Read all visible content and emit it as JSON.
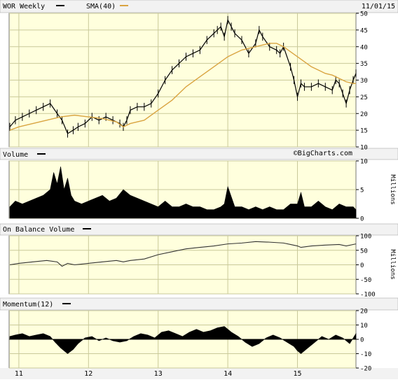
{
  "header": {
    "ticker_label": "WOR Weekly",
    "sma_label": "SMA(40)",
    "date": "11/01/15"
  },
  "watermark": "©BigCharts.com",
  "panels": {
    "volume": {
      "label": "Volume",
      "unit": "Millions"
    },
    "obv": {
      "label": "On Balance Volume",
      "unit": "Millions"
    },
    "momentum": {
      "label": "Momentum(12)"
    }
  },
  "x_axis": {
    "tick_labels": [
      "11",
      "12",
      "13",
      "14",
      "15"
    ],
    "tick_positions": [
      2011.0,
      2012.0,
      2013.0,
      2014.0,
      2015.0
    ]
  },
  "colors": {
    "price": "#000000",
    "sma": "#d9a441",
    "panel_bg": "#ffffdd",
    "grid": "#c9c99a",
    "header_bg": "#f2f2f2",
    "area": "#000000",
    "obv_line": "#333333"
  },
  "chart_data": [
    {
      "type": "line",
      "name": "price",
      "x_range": [
        2010.86,
        2015.84
      ],
      "ylim": [
        10,
        50
      ],
      "y_ticks": [
        10,
        15,
        20,
        25,
        30,
        35,
        40,
        45,
        50
      ],
      "grid": true,
      "series": [
        {
          "name": "WOR Weekly",
          "x": [
            2010.87,
            2010.95,
            2011.05,
            2011.15,
            2011.25,
            2011.35,
            2011.45,
            2011.55,
            2011.62,
            2011.7,
            2011.78,
            2011.85,
            2011.95,
            2012.05,
            2012.15,
            2012.25,
            2012.35,
            2012.45,
            2012.5,
            2012.55,
            2012.6,
            2012.7,
            2012.8,
            2012.9,
            2013.0,
            2013.1,
            2013.2,
            2013.3,
            2013.4,
            2013.5,
            2013.6,
            2013.7,
            2013.8,
            2013.85,
            2013.9,
            2013.95,
            2014.0,
            2014.05,
            2014.1,
            2014.2,
            2014.3,
            2014.4,
            2014.45,
            2014.5,
            2014.6,
            2014.7,
            2014.75,
            2014.8,
            2014.9,
            2014.95,
            2015.0,
            2015.05,
            2015.1,
            2015.2,
            2015.3,
            2015.4,
            2015.5,
            2015.55,
            2015.6,
            2015.65,
            2015.7,
            2015.75,
            2015.8,
            2015.84
          ],
          "values": [
            16,
            18,
            19,
            20,
            21,
            22,
            23,
            20,
            18,
            14,
            15,
            16,
            17,
            19,
            18,
            19,
            18,
            17,
            16,
            18,
            21,
            22,
            22,
            23,
            26,
            30,
            33,
            35,
            37,
            38,
            39,
            42,
            44,
            45,
            46,
            43,
            48,
            46,
            44,
            42,
            38,
            41,
            45,
            43,
            40,
            39,
            38,
            40,
            34,
            30,
            25,
            29,
            28,
            28,
            29,
            28,
            27,
            30,
            29,
            26,
            23,
            27,
            30,
            32
          ]
        },
        {
          "name": "SMA(40)",
          "x": [
            2010.87,
            2011.0,
            2011.2,
            2011.4,
            2011.6,
            2011.8,
            2012.0,
            2012.2,
            2012.4,
            2012.5,
            2012.6,
            2012.8,
            2013.0,
            2013.2,
            2013.4,
            2013.6,
            2013.8,
            2014.0,
            2014.1,
            2014.2,
            2014.3,
            2014.4,
            2014.5,
            2014.6,
            2014.7,
            2014.8,
            2014.9,
            2015.0,
            2015.1,
            2015.2,
            2015.3,
            2015.4,
            2015.5,
            2015.6,
            2015.7,
            2015.8,
            2015.84
          ],
          "values": [
            15,
            16,
            17,
            18,
            19,
            19.5,
            19,
            18.5,
            17.5,
            16,
            17,
            18,
            21,
            24,
            28,
            31,
            34,
            37,
            38,
            39,
            39.5,
            40,
            40.5,
            41,
            41,
            40,
            38.5,
            37,
            35.5,
            34,
            33,
            32,
            31.5,
            30.5,
            29.5,
            29,
            29
          ]
        }
      ]
    },
    {
      "type": "area",
      "name": "volume",
      "x_range": [
        2010.86,
        2015.84
      ],
      "ylim": [
        0,
        10
      ],
      "y_ticks": [
        0,
        5,
        10
      ],
      "ylabel": "Millions",
      "x": [
        2010.87,
        2010.95,
        2011.05,
        2011.15,
        2011.25,
        2011.35,
        2011.45,
        2011.5,
        2011.55,
        2011.6,
        2011.65,
        2011.7,
        2011.75,
        2011.8,
        2011.9,
        2012.0,
        2012.1,
        2012.2,
        2012.3,
        2012.4,
        2012.5,
        2012.6,
        2012.7,
        2012.8,
        2012.9,
        2013.0,
        2013.1,
        2013.2,
        2013.3,
        2013.4,
        2013.5,
        2013.6,
        2013.7,
        2013.8,
        2013.9,
        2013.95,
        2014.0,
        2014.1,
        2014.2,
        2014.3,
        2014.4,
        2014.5,
        2014.6,
        2014.7,
        2014.8,
        2014.9,
        2015.0,
        2015.05,
        2015.1,
        2015.2,
        2015.3,
        2015.4,
        2015.5,
        2015.6,
        2015.7,
        2015.8,
        2015.84
      ],
      "values": [
        2,
        3,
        2.5,
        3,
        3.5,
        4,
        5,
        8,
        6,
        9,
        5,
        7,
        4,
        3,
        2.5,
        3,
        3.5,
        4,
        3,
        3.5,
        5,
        4,
        3.5,
        3,
        2.5,
        2,
        3,
        2,
        2,
        2.5,
        2,
        2,
        1.5,
        1.5,
        2,
        2.5,
        5.5,
        2,
        2,
        1.5,
        2,
        1.5,
        2,
        1.5,
        1.5,
        2.5,
        2.5,
        4.5,
        2,
        2,
        3,
        2,
        1.5,
        2.5,
        2,
        2,
        1.5
      ]
    },
    {
      "type": "line",
      "name": "on_balance_volume",
      "x_range": [
        2010.86,
        2015.84
      ],
      "ylim": [
        -100,
        100
      ],
      "y_ticks": [
        -100,
        -50,
        0,
        50,
        100
      ],
      "ylabel": "Millions",
      "x": [
        2010.87,
        2011.0,
        2011.2,
        2011.4,
        2011.55,
        2011.62,
        2011.7,
        2011.8,
        2012.0,
        2012.2,
        2012.4,
        2012.5,
        2012.6,
        2012.8,
        2013.0,
        2013.2,
        2013.4,
        2013.6,
        2013.8,
        2014.0,
        2014.2,
        2014.4,
        2014.6,
        2014.8,
        2014.9,
        2015.0,
        2015.05,
        2015.2,
        2015.4,
        2015.6,
        2015.7,
        2015.84
      ],
      "values": [
        0,
        5,
        10,
        15,
        10,
        -5,
        5,
        0,
        5,
        10,
        15,
        10,
        15,
        20,
        35,
        45,
        55,
        60,
        65,
        72,
        75,
        80,
        78,
        75,
        70,
        65,
        60,
        65,
        68,
        70,
        65,
        72
      ]
    },
    {
      "type": "area",
      "name": "momentum",
      "x_range": [
        2010.86,
        2015.84
      ],
      "ylim": [
        -20,
        20
      ],
      "y_ticks": [
        -20,
        -10,
        0,
        10,
        20
      ],
      "x": [
        2010.87,
        2010.95,
        2011.05,
        2011.15,
        2011.25,
        2011.35,
        2011.45,
        2011.52,
        2011.6,
        2011.7,
        2011.78,
        2011.85,
        2011.95,
        2012.05,
        2012.15,
        2012.25,
        2012.35,
        2012.45,
        2012.55,
        2012.65,
        2012.75,
        2012.85,
        2012.95,
        2013.05,
        2013.15,
        2013.25,
        2013.35,
        2013.45,
        2013.55,
        2013.65,
        2013.75,
        2013.85,
        2013.95,
        2014.05,
        2014.15,
        2014.25,
        2014.35,
        2014.45,
        2014.55,
        2014.65,
        2014.75,
        2014.85,
        2014.95,
        2015.0,
        2015.05,
        2015.15,
        2015.25,
        2015.35,
        2015.45,
        2015.55,
        2015.65,
        2015.75,
        2015.84
      ],
      "values": [
        2,
        3,
        4,
        2,
        3,
        4,
        2,
        -2,
        -6,
        -10,
        -7,
        -3,
        1,
        2,
        -1,
        1,
        -1,
        -2,
        -1,
        2,
        4,
        3,
        1,
        5,
        6,
        4,
        2,
        5,
        7,
        5,
        6,
        8,
        9,
        5,
        2,
        -2,
        -5,
        -3,
        1,
        3,
        1,
        -2,
        -5,
        -8,
        -10,
        -6,
        -2,
        2,
        0,
        3,
        1,
        -3,
        4
      ]
    }
  ]
}
